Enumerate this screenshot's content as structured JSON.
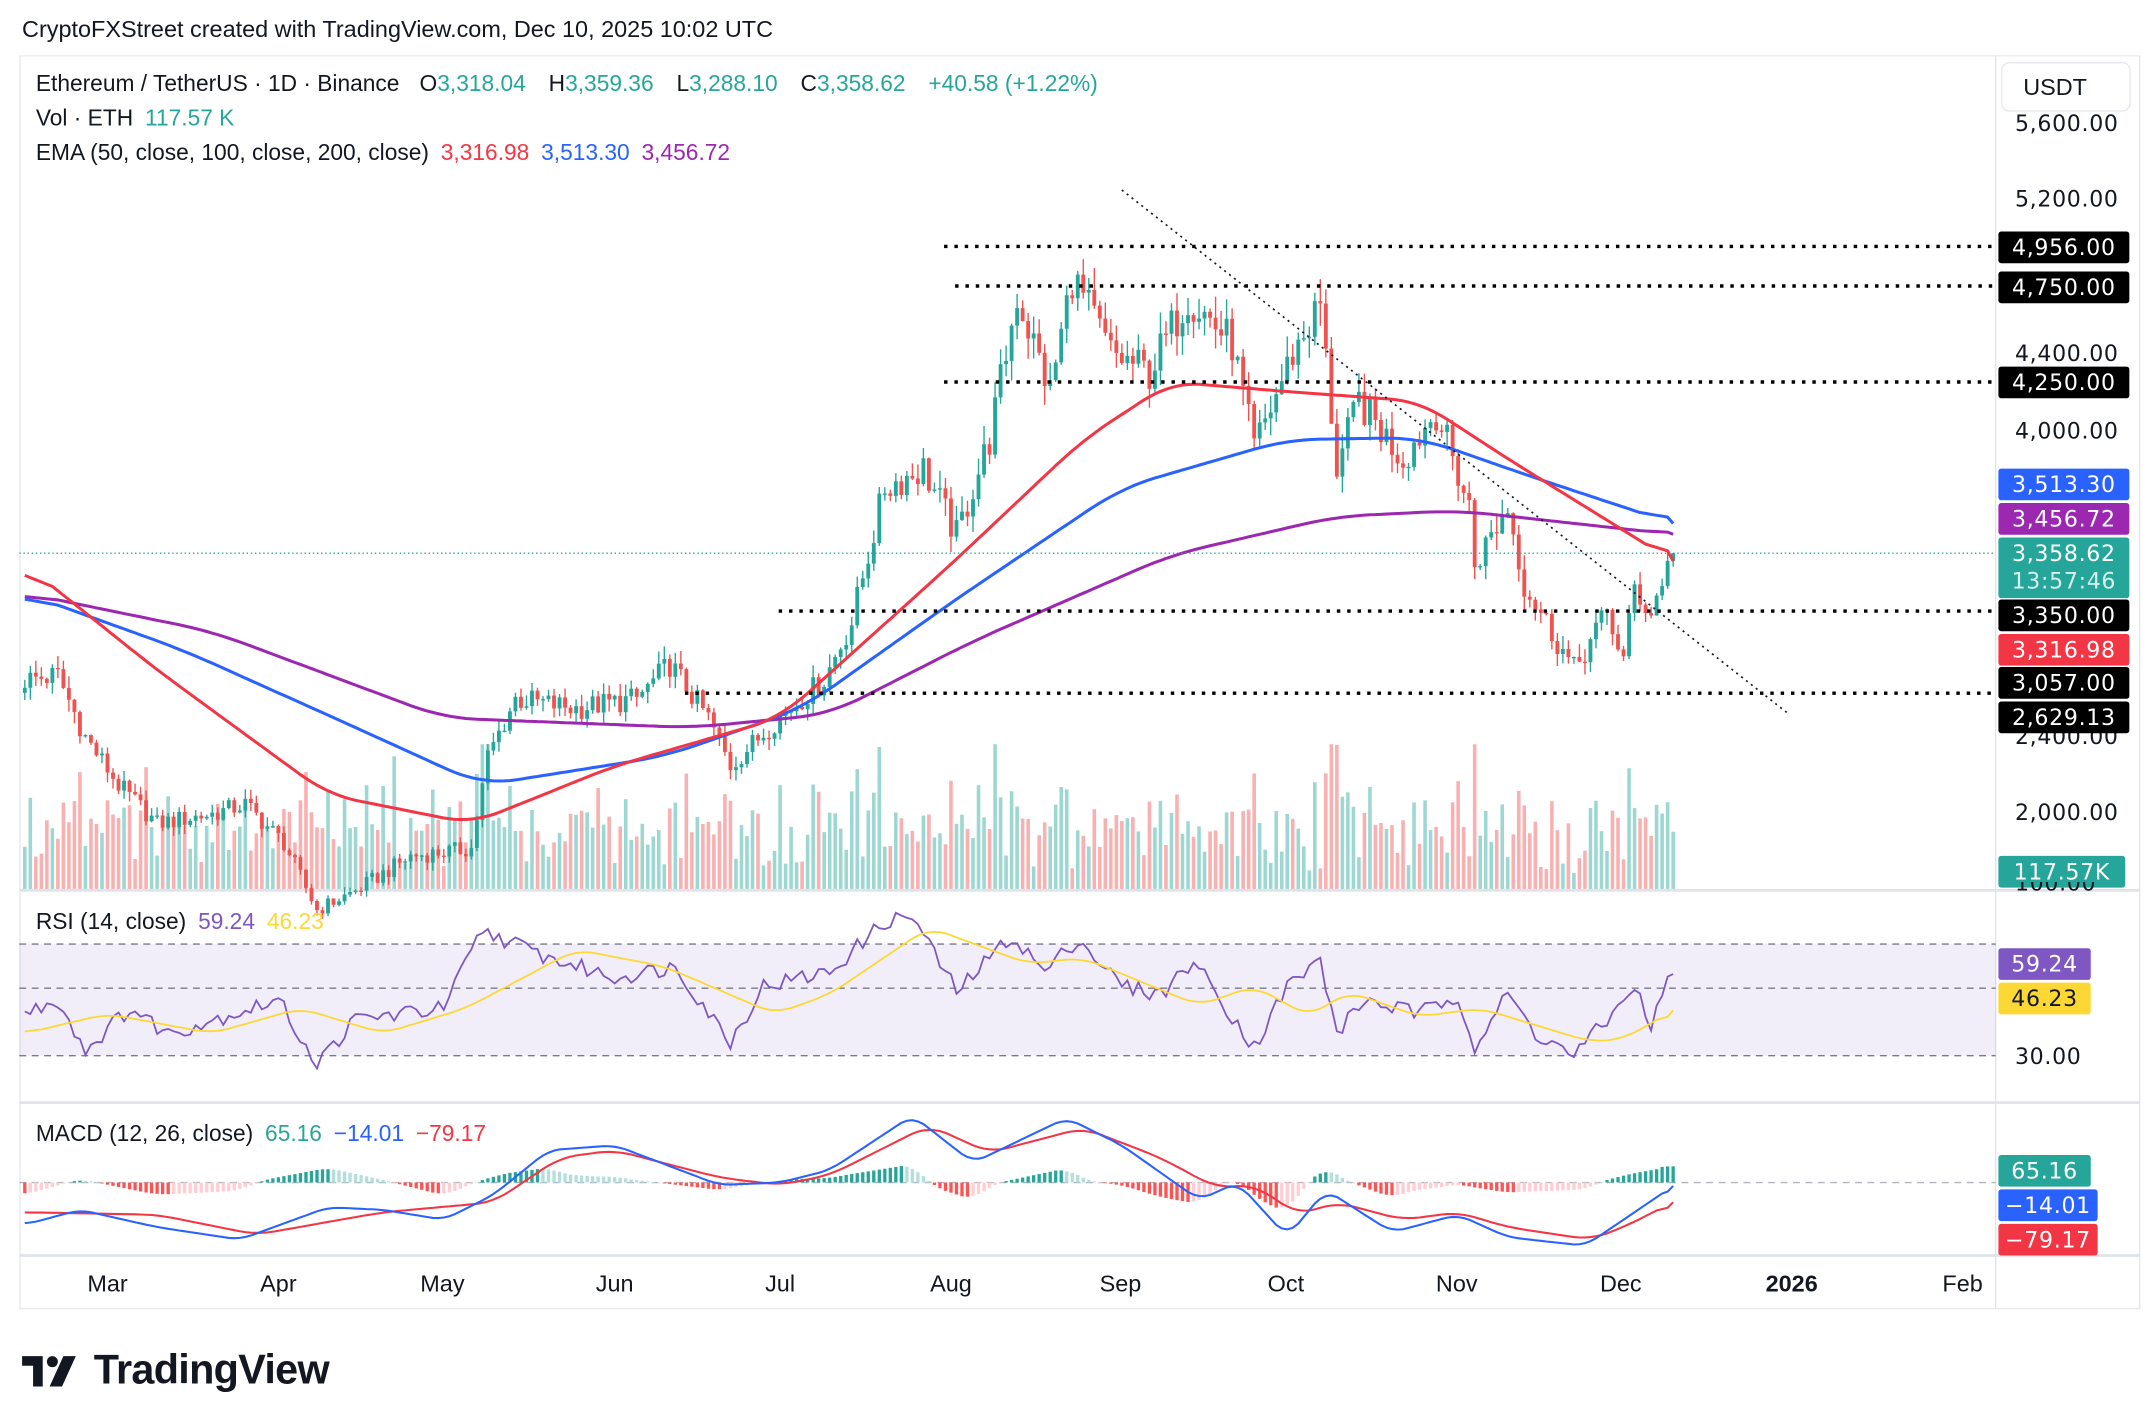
{
  "credit": "CryptoFXStreet created with TradingView.com, Dec 10, 2025 10:02 UTC",
  "legend": {
    "symbol": "Ethereum / TetherUS · 1D · Binance",
    "o_label": "O",
    "open": "3,318.04",
    "h_label": "H",
    "high": "3,359.36",
    "l_label": "L",
    "low": "3,288.10",
    "c_label": "C",
    "close": "3,358.62",
    "change": "+40.58 (+1.22%)",
    "vol_label": "Vol · ETH",
    "vol": "117.57 K",
    "ema_label": "EMA (50, close, 100, close, 200, close)",
    "ema50": "3,316.98",
    "ema100": "3,513.30",
    "ema200": "3,456.72",
    "rsi_label": "RSI (14, close)",
    "rsi": "59.24",
    "rsi_ma": "46.23",
    "macd_label": "MACD (12, 26, close)",
    "macd_hist": "65.16",
    "macd": "−14.01",
    "macd_signal": "−79.17"
  },
  "price_axis": {
    "currency": "USDT",
    "ticks": [
      "5,600.00",
      "5,200.00",
      "4,400.00",
      "4,000.00",
      "2,400.00",
      "2,000.00"
    ],
    "tags": {
      "r4956": "4,956.00",
      "r4750": "4,750.00",
      "r4250": "4,250.00",
      "ema100": "3,513.30",
      "ema200": "3,456.72",
      "last": "3,358.62",
      "countdown": "13:57:46",
      "s3350": "3,350.00",
      "ema50": "3,316.98",
      "s3057": "3,057.00",
      "s2629": "2,629.13",
      "vol": "117.57K"
    },
    "rsi_ticks": [
      "100.00",
      "30.00"
    ],
    "rsi_tags": {
      "rsi": "59.24",
      "ma": "46.23"
    },
    "macd_tags": {
      "hist": "65.16",
      "macd": "−14.01",
      "signal": "−79.17"
    }
  },
  "time_axis": [
    "Mar",
    "Apr",
    "May",
    "Jun",
    "Jul",
    "Aug",
    "Sep",
    "Oct",
    "Nov",
    "Dec",
    "2026",
    "Feb"
  ],
  "brand": "TradingView",
  "colors": {
    "up": "#26a69a",
    "down": "#ef5350",
    "ema50": "#f23645",
    "ema100": "#2962ff",
    "ema200": "#9c27b0",
    "rsi": "#7e57c2",
    "rsi_ma": "#fdd835",
    "macd": "#2962ff",
    "signal": "#f23645"
  },
  "chart_data": {
    "type": "candlestick",
    "symbol": "ETHUSDT",
    "interval": "1D",
    "ylim": [
      1800,
      5700
    ],
    "last_candle": {
      "date": "2025-12-10",
      "open": 3318.04,
      "high": 3359.36,
      "low": 3288.1,
      "close": 3358.62,
      "volume_k": 117.57
    },
    "close_path": [
      [
        "2025-02-14",
        2700
      ],
      [
        "2025-02-20",
        2720
      ],
      [
        "2025-02-25",
        2400
      ],
      [
        "2025-03-03",
        2150
      ],
      [
        "2025-03-10",
        1950
      ],
      [
        "2025-03-20",
        2000
      ],
      [
        "2025-03-26",
        2050
      ],
      [
        "2025-04-02",
        1850
      ],
      [
        "2025-04-08",
        1500
      ],
      [
        "2025-04-15",
        1600
      ],
      [
        "2025-04-25",
        1780
      ],
      [
        "2025-05-06",
        1820
      ],
      [
        "2025-05-09",
        2300
      ],
      [
        "2025-05-14",
        2600
      ],
      [
        "2025-05-25",
        2550
      ],
      [
        "2025-06-05",
        2600
      ],
      [
        "2025-06-11",
        2780
      ],
      [
        "2025-06-18",
        2500
      ],
      [
        "2025-06-22",
        2250
      ],
      [
        "2025-06-30",
        2480
      ],
      [
        "2025-07-09",
        2700
      ],
      [
        "2025-07-14",
        3000
      ],
      [
        "2025-07-20",
        3700
      ],
      [
        "2025-07-27",
        3800
      ],
      [
        "2025-08-02",
        3450
      ],
      [
        "2025-08-08",
        3950
      ],
      [
        "2025-08-13",
        4700
      ],
      [
        "2025-08-19",
        4200
      ],
      [
        "2025-08-23",
        4800
      ],
      [
        "2025-08-30",
        4400
      ],
      [
        "2025-09-06",
        4300
      ],
      [
        "2025-09-13",
        4700
      ],
      [
        "2025-09-21",
        4450
      ],
      [
        "2025-09-25",
        3900
      ],
      [
        "2025-10-02",
        4400
      ],
      [
        "2025-10-07",
        4650
      ],
      [
        "2025-10-10",
        3800
      ],
      [
        "2025-10-14",
        4150
      ],
      [
        "2025-10-22",
        3850
      ],
      [
        "2025-10-28",
        4100
      ],
      [
        "2025-11-03",
        3600
      ],
      [
        "2025-11-04",
        3300
      ],
      [
        "2025-11-10",
        3600
      ],
      [
        "2025-11-13",
        3200
      ],
      [
        "2025-11-20",
        2850
      ],
      [
        "2025-11-22",
        2750
      ],
      [
        "2025-11-28",
        3050
      ],
      [
        "2025-12-01",
        2800
      ],
      [
        "2025-12-03",
        3180
      ],
      [
        "2025-12-06",
        3040
      ],
      [
        "2025-12-09",
        3318.04
      ],
      [
        "2025-12-10",
        3358.62
      ]
    ],
    "ema50": [
      [
        "2025-02-14",
        3300
      ],
      [
        "2025-03-10",
        2750
      ],
      [
        "2025-04-10",
        2100
      ],
      [
        "2025-05-06",
        1950
      ],
      [
        "2025-06-01",
        2250
      ],
      [
        "2025-07-01",
        2500
      ],
      [
        "2025-08-01",
        3300
      ],
      [
        "2025-08-25",
        3950
      ],
      [
        "2025-09-10",
        4250
      ],
      [
        "2025-10-01",
        4200
      ],
      [
        "2025-10-25",
        4150
      ],
      [
        "2025-11-10",
        3850
      ],
      [
        "2025-12-10",
        3316.98
      ]
    ],
    "ema100": [
      [
        "2025-02-14",
        3150
      ],
      [
        "2025-03-15",
        2850
      ],
      [
        "2025-04-15",
        2450
      ],
      [
        "2025-05-08",
        2150
      ],
      [
        "2025-06-10",
        2300
      ],
      [
        "2025-07-05",
        2550
      ],
      [
        "2025-08-01",
        3100
      ],
      [
        "2025-09-01",
        3700
      ],
      [
        "2025-10-01",
        3950
      ],
      [
        "2025-10-25",
        3960
      ],
      [
        "2025-11-15",
        3750
      ],
      [
        "2025-12-10",
        3513.3
      ]
    ],
    "ema200": [
      [
        "2025-02-14",
        3150
      ],
      [
        "2025-03-20",
        2950
      ],
      [
        "2025-05-01",
        2500
      ],
      [
        "2025-06-15",
        2450
      ],
      [
        "2025-07-10",
        2520
      ],
      [
        "2025-08-05",
        2900
      ],
      [
        "2025-09-10",
        3350
      ],
      [
        "2025-10-10",
        3550
      ],
      [
        "2025-11-01",
        3580
      ],
      [
        "2025-12-10",
        3456.72
      ]
    ],
    "levels": {
      "resistance": [
        4956.0,
        4750.0,
        4250.0
      ],
      "support": [
        3350.0,
        3057.0,
        2629.13
      ]
    },
    "trendline": [
      [
        "2025-09-01",
        5250
      ],
      [
        "2025-12-31",
        2520
      ]
    ],
    "rsi": {
      "bands": [
        70,
        50,
        30
      ],
      "rsi": [
        [
          "2025-02-14",
          45
        ],
        [
          "2025-02-20",
          50
        ],
        [
          "2025-02-25",
          32
        ],
        [
          "2025-03-05",
          47
        ],
        [
          "2025-03-12",
          38
        ],
        [
          "2025-04-01",
          50
        ],
        [
          "2025-04-08",
          27
        ],
        [
          "2025-04-15",
          43
        ],
        [
          "2025-05-01",
          47
        ],
        [
          "2025-05-08",
          75
        ],
        [
          "2025-05-20",
          65
        ],
        [
          "2025-06-01",
          58
        ],
        [
          "2025-06-12",
          62
        ],
        [
          "2025-06-22",
          35
        ],
        [
          "2025-06-28",
          55
        ],
        [
          "2025-07-10",
          60
        ],
        [
          "2025-07-20",
          78
        ],
        [
          "2025-07-25",
          80
        ],
        [
          "2025-08-02",
          53
        ],
        [
          "2025-08-12",
          73
        ],
        [
          "2025-08-18",
          60
        ],
        [
          "2025-08-24",
          72
        ],
        [
          "2025-09-01",
          55
        ],
        [
          "2025-09-08",
          52
        ],
        [
          "2025-09-14",
          64
        ],
        [
          "2025-09-25",
          33
        ],
        [
          "2025-10-01",
          55
        ],
        [
          "2025-10-07",
          64
        ],
        [
          "2025-10-10",
          38
        ],
        [
          "2025-10-15",
          50
        ],
        [
          "2025-10-25",
          45
        ],
        [
          "2025-11-01",
          52
        ],
        [
          "2025-11-04",
          33
        ],
        [
          "2025-11-10",
          52
        ],
        [
          "2025-11-15",
          38
        ],
        [
          "2025-11-22",
          30
        ],
        [
          "2025-11-30",
          47
        ],
        [
          "2025-12-03",
          56
        ],
        [
          "2025-12-06",
          38
        ],
        [
          "2025-12-08",
          54
        ],
        [
          "2025-12-10",
          59.24
        ]
      ],
      "ma": [
        [
          "2025-02-14",
          38
        ],
        [
          "2025-03-01",
          45
        ],
        [
          "2025-03-20",
          38
        ],
        [
          "2025-04-05",
          47
        ],
        [
          "2025-04-20",
          38
        ],
        [
          "2025-05-05",
          47
        ],
        [
          "2025-05-25",
          68
        ],
        [
          "2025-06-10",
          62
        ],
        [
          "2025-06-30",
          45
        ],
        [
          "2025-07-10",
          52
        ],
        [
          "2025-07-28",
          76
        ],
        [
          "2025-08-15",
          63
        ],
        [
          "2025-08-25",
          65
        ],
        [
          "2025-09-15",
          48
        ],
        [
          "2025-09-25",
          55
        ],
        [
          "2025-10-05",
          44
        ],
        [
          "2025-10-12",
          53
        ],
        [
          "2025-10-25",
          44
        ],
        [
          "2025-11-05",
          47
        ],
        [
          "2025-11-25",
          35
        ],
        [
          "2025-12-01",
          36
        ],
        [
          "2025-12-10",
          46.23
        ]
      ]
    },
    "macd": {
      "macd": [
        [
          "2025-02-14",
          -170
        ],
        [
          "2025-02-24",
          -110
        ],
        [
          "2025-03-10",
          -180
        ],
        [
          "2025-03-25",
          -230
        ],
        [
          "2025-04-10",
          -100
        ],
        [
          "2025-04-20",
          -110
        ],
        [
          "2025-05-01",
          -150
        ],
        [
          "2025-05-10",
          -50
        ],
        [
          "2025-05-20",
          130
        ],
        [
          "2025-06-01",
          150
        ],
        [
          "2025-06-20",
          -10
        ],
        [
          "2025-07-01",
          0
        ],
        [
          "2025-07-10",
          50
        ],
        [
          "2025-07-25",
          270
        ],
        [
          "2025-08-05",
          80
        ],
        [
          "2025-08-22",
          260
        ],
        [
          "2025-09-01",
          150
        ],
        [
          "2025-09-15",
          -70
        ],
        [
          "2025-09-22",
          0
        ],
        [
          "2025-10-01",
          -220
        ],
        [
          "2025-10-08",
          -30
        ],
        [
          "2025-10-20",
          -200
        ],
        [
          "2025-11-01",
          -130
        ],
        [
          "2025-11-10",
          -220
        ],
        [
          "2025-11-24",
          -255
        ],
        [
          "2025-12-01",
          -150
        ],
        [
          "2025-12-10",
          -14.01
        ]
      ],
      "signal": [
        [
          "2025-02-14",
          -120
        ],
        [
          "2025-03-10",
          -130
        ],
        [
          "2025-03-28",
          -210
        ],
        [
          "2025-04-20",
          -120
        ],
        [
          "2025-05-10",
          -80
        ],
        [
          "2025-05-22",
          100
        ],
        [
          "2025-06-01",
          130
        ],
        [
          "2025-06-20",
          20
        ],
        [
          "2025-07-01",
          -10
        ],
        [
          "2025-07-10",
          30
        ],
        [
          "2025-07-28",
          230
        ],
        [
          "2025-08-08",
          120
        ],
        [
          "2025-08-25",
          220
        ],
        [
          "2025-09-08",
          100
        ],
        [
          "2025-09-18",
          -20
        ],
        [
          "2025-09-25",
          -10
        ],
        [
          "2025-10-03",
          -130
        ],
        [
          "2025-10-10",
          -80
        ],
        [
          "2025-10-22",
          -150
        ],
        [
          "2025-11-01",
          -120
        ],
        [
          "2025-11-10",
          -180
        ],
        [
          "2025-11-25",
          -230
        ],
        [
          "2025-12-01",
          -180
        ],
        [
          "2025-12-10",
          -79.17
        ]
      ]
    }
  }
}
